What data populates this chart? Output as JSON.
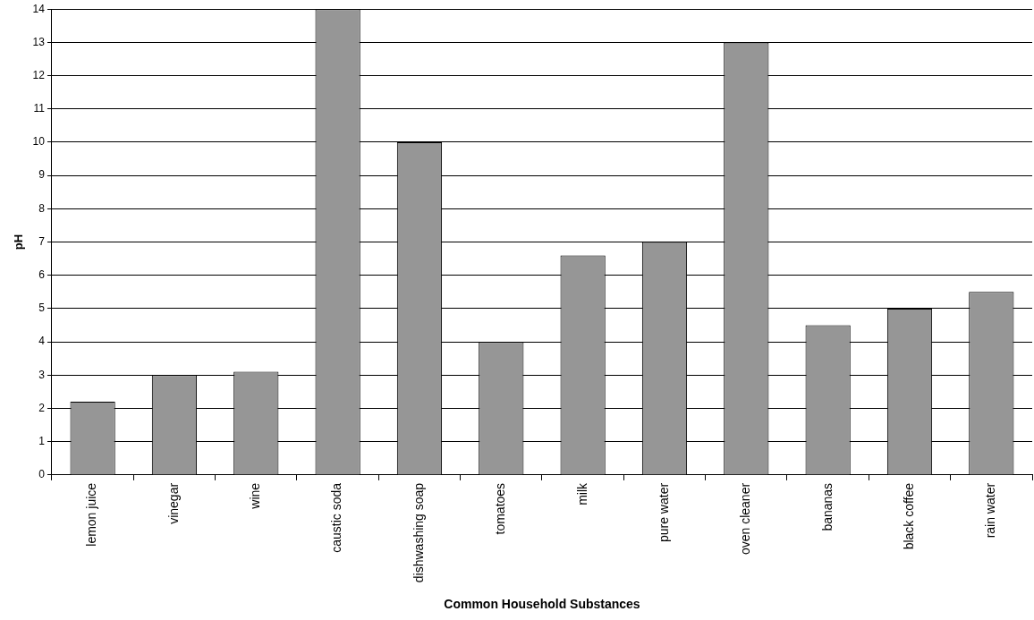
{
  "chart_data": {
    "type": "bar",
    "xlabel": "Common Household Substances",
    "ylabel": "pH",
    "categories": [
      "lemon juice",
      "vinegar",
      "wine",
      "caustic soda",
      "dishwashing soap",
      "tomatoes",
      "milk",
      "pure water",
      "oven cleaner",
      "bananas",
      "black coffee",
      "rain water"
    ],
    "values": [
      2.2,
      3,
      3.1,
      14,
      10,
      4,
      6.6,
      7,
      13,
      4.5,
      5,
      5.5
    ],
    "color": "#969696",
    "ylim": [
      0,
      14
    ],
    "yticks": [
      0,
      1,
      2,
      3,
      4,
      5,
      6,
      7,
      8,
      9,
      10,
      11,
      12,
      13,
      14
    ],
    "grid": "y",
    "legend": false
  }
}
